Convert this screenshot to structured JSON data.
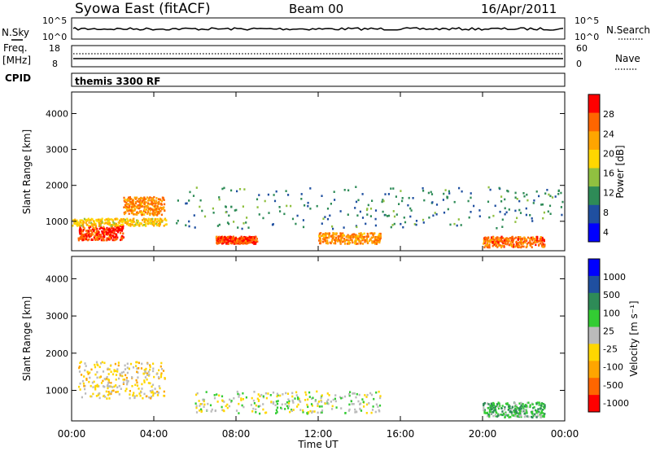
{
  "header": {
    "station": "Syowa East (fitACF)",
    "beam": "Beam 00",
    "date": "16/Apr/2011"
  },
  "strips": {
    "nsky": {
      "left_label": "N.Sky",
      "right_label": "N.Search",
      "left_ticks": [
        "10^5",
        "10^0"
      ],
      "right_ticks": [
        "10^5",
        "10^0"
      ]
    },
    "freq": {
      "left_label_1": "Freq.",
      "left_label_2": "[MHz]",
      "right_label": "Nave",
      "left_ticks": [
        "18",
        "8"
      ],
      "right_ticks": [
        "60",
        "0"
      ]
    },
    "cpid": {
      "left_label": "CPID",
      "program": "themis 3300 RF"
    }
  },
  "colors": {
    "scale": [
      "#0000ff",
      "#1f4fa0",
      "#2e8b57",
      "#90c040",
      "#ffd700",
      "#ffa500",
      "#ff6600",
      "#ff0000"
    ],
    "velocity_scale": [
      "#0000ff",
      "#1f4fa0",
      "#2e8b57",
      "#33cc33",
      "#bbbbbb",
      "#ffd700",
      "#ffa500",
      "#ff6600",
      "#ff0000"
    ]
  },
  "chart_data": [
    {
      "type": "heatmap",
      "title": "",
      "xlabel": "Time UT",
      "ylabel": "Slant Range [km]",
      "x_ticks": [
        "00:00",
        "04:00",
        "08:00",
        "12:00",
        "16:00",
        "20:00",
        "00:00"
      ],
      "x_range_hours": [
        0,
        24
      ],
      "y_ticks": [
        "1000",
        "2000",
        "3000",
        "4000"
      ],
      "ylim": [
        180,
        4600
      ],
      "colorbar": {
        "label": "Power [dB]",
        "ticks": [
          "28",
          "24",
          "20",
          "16",
          "12",
          "8",
          "4"
        ],
        "range": [
          0,
          30
        ]
      },
      "bands": [
        {
          "t": [
            0.3,
            2.5
          ],
          "r": [
            500,
            900
          ],
          "value": 26
        },
        {
          "t": [
            2.5,
            4.5
          ],
          "r": [
            1200,
            1700
          ],
          "value": 22
        },
        {
          "t": [
            0,
            4.6
          ],
          "r": [
            900,
            1100
          ],
          "value": 18
        },
        {
          "t": [
            7,
            9
          ],
          "r": [
            400,
            600
          ],
          "value": 26
        },
        {
          "t": [
            12,
            15
          ],
          "r": [
            400,
            700
          ],
          "value": 22
        },
        {
          "t": [
            20,
            23
          ],
          "r": [
            300,
            600
          ],
          "value": 24
        },
        {
          "t": [
            5,
            24
          ],
          "r": [
            800,
            2000
          ],
          "value": 9
        }
      ]
    },
    {
      "type": "heatmap",
      "title": "",
      "xlabel": "Time UT",
      "ylabel": "Slant Range [km]",
      "x_ticks": [
        "00:00",
        "04:00",
        "08:00",
        "12:00",
        "16:00",
        "20:00",
        "00:00"
      ],
      "x_range_hours": [
        0,
        24
      ],
      "y_ticks": [
        "1000",
        "2000",
        "3000",
        "4000"
      ],
      "ylim": [
        180,
        4600
      ],
      "colorbar": {
        "label": "Velocity [m s⁻¹]",
        "ticks": [
          "1000",
          "500",
          "100",
          "25",
          "-25",
          "-100",
          "-500",
          "-1000"
        ],
        "range": [
          -1200,
          1200
        ]
      },
      "bands": [
        {
          "t": [
            0.3,
            4.5
          ],
          "r": [
            800,
            1800
          ],
          "value": -200
        },
        {
          "t": [
            6,
            15
          ],
          "r": [
            400,
            1000
          ],
          "value": 0
        },
        {
          "t": [
            20,
            23
          ],
          "r": [
            300,
            700
          ],
          "value": 300
        }
      ]
    }
  ]
}
